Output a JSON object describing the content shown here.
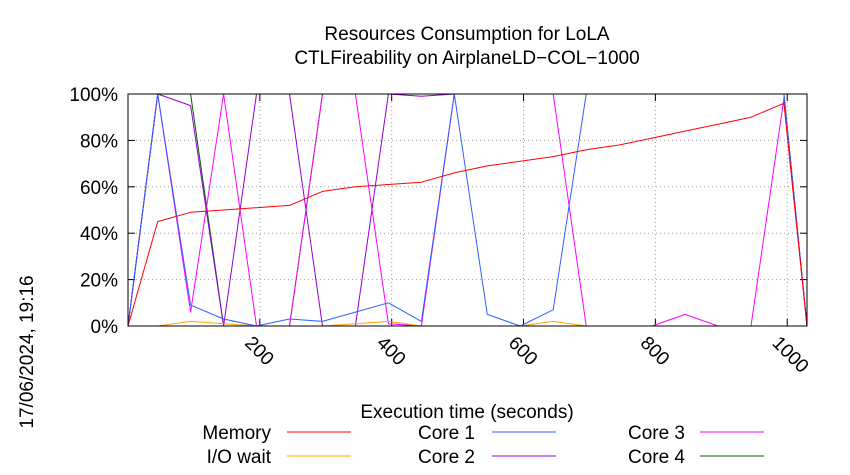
{
  "chart_data": {
    "type": "line",
    "title": "Resources Consumption for LoLA",
    "subtitle": "CTLFireability on AirplaneLD−COL−1000",
    "xlabel": "Execution time (seconds)",
    "ylabel": "",
    "timestamp": "17/06/2024, 19:16",
    "xlim": [
      0,
      1030
    ],
    "ylim": [
      0,
      100
    ],
    "x_ticks": [
      {
        "value": 200,
        "label": "200"
      },
      {
        "value": 400,
        "label": "400"
      },
      {
        "value": 600,
        "label": "600"
      },
      {
        "value": 800,
        "label": "800"
      },
      {
        "value": 1000,
        "label": "1000"
      }
    ],
    "y_ticks": [
      {
        "value": 0,
        "label": "0%"
      },
      {
        "value": 20,
        "label": "20%"
      },
      {
        "value": 40,
        "label": "40%"
      },
      {
        "value": 60,
        "label": "60%"
      },
      {
        "value": 80,
        "label": "80%"
      },
      {
        "value": 100,
        "label": "100%"
      }
    ],
    "grid": true,
    "legend_position": "bottom",
    "series": [
      {
        "name": "Memory",
        "color": "#ff0000",
        "legend_col": 0,
        "legend_row": 0,
        "points": [
          [
            0,
            0
          ],
          [
            45,
            45
          ],
          [
            95,
            49
          ],
          [
            145,
            50
          ],
          [
            195,
            51
          ],
          [
            245,
            52
          ],
          [
            295,
            58
          ],
          [
            345,
            60
          ],
          [
            395,
            61
          ],
          [
            445,
            62
          ],
          [
            495,
            66
          ],
          [
            545,
            69
          ],
          [
            595,
            71
          ],
          [
            645,
            73
          ],
          [
            695,
            76
          ],
          [
            745,
            78
          ],
          [
            795,
            81
          ],
          [
            845,
            84
          ],
          [
            895,
            87
          ],
          [
            945,
            90
          ],
          [
            995,
            96
          ],
          [
            1030,
            0
          ]
        ]
      },
      {
        "name": "I/O wait",
        "color": "#ffa500",
        "legend_col": 0,
        "legend_row": 1,
        "points": [
          [
            0,
            0
          ],
          [
            45,
            0
          ],
          [
            95,
            2
          ],
          [
            145,
            1
          ],
          [
            195,
            0
          ],
          [
            245,
            0
          ],
          [
            295,
            0
          ],
          [
            345,
            1
          ],
          [
            395,
            2
          ],
          [
            445,
            0
          ],
          [
            495,
            0
          ],
          [
            545,
            0
          ],
          [
            595,
            0
          ],
          [
            645,
            2
          ],
          [
            695,
            0
          ],
          [
            745,
            0
          ],
          [
            795,
            0
          ],
          [
            845,
            0
          ],
          [
            895,
            0
          ],
          [
            945,
            0
          ],
          [
            995,
            0
          ],
          [
            1030,
            0
          ]
        ]
      },
      {
        "name": "Core 1",
        "color": "#3060ff",
        "legend_col": 1,
        "legend_row": 0,
        "points": [
          [
            0,
            0
          ],
          [
            45,
            100
          ],
          [
            95,
            9
          ],
          [
            145,
            3
          ],
          [
            195,
            0
          ],
          [
            245,
            3
          ],
          [
            295,
            2
          ],
          [
            345,
            6
          ],
          [
            395,
            10
          ],
          [
            445,
            2
          ],
          [
            495,
            100
          ],
          [
            545,
            5
          ],
          [
            595,
            0
          ],
          [
            645,
            7
          ],
          [
            695,
            100
          ],
          [
            745,
            100
          ],
          [
            795,
            100
          ],
          [
            845,
            100
          ],
          [
            895,
            100
          ],
          [
            945,
            100
          ],
          [
            995,
            100
          ],
          [
            1030,
            0
          ]
        ]
      },
      {
        "name": "Core 2",
        "color": "#9400d3",
        "legend_col": 1,
        "legend_row": 1,
        "points": [
          [
            0,
            0
          ],
          [
            45,
            100
          ],
          [
            95,
            95
          ],
          [
            145,
            0
          ],
          [
            195,
            100
          ],
          [
            245,
            100
          ],
          [
            295,
            0
          ],
          [
            345,
            0
          ],
          [
            395,
            100
          ],
          [
            445,
            99
          ],
          [
            495,
            100
          ],
          [
            545,
            100
          ],
          [
            595,
            100
          ],
          [
            645,
            100
          ],
          [
            695,
            100
          ],
          [
            745,
            100
          ],
          [
            795,
            100
          ],
          [
            845,
            100
          ],
          [
            895,
            100
          ],
          [
            945,
            100
          ],
          [
            995,
            100
          ],
          [
            1030,
            0
          ]
        ]
      },
      {
        "name": "Core 3",
        "color": "#ff00ff",
        "legend_col": 2,
        "legend_row": 0,
        "points": [
          [
            0,
            0
          ],
          [
            45,
            100
          ],
          [
            95,
            6
          ],
          [
            145,
            100
          ],
          [
            195,
            0
          ],
          [
            245,
            0
          ],
          [
            295,
            100
          ],
          [
            345,
            100
          ],
          [
            395,
            1
          ],
          [
            445,
            0
          ],
          [
            495,
            100
          ],
          [
            545,
            100
          ],
          [
            595,
            100
          ],
          [
            645,
            100
          ],
          [
            695,
            0
          ],
          [
            745,
            0
          ],
          [
            795,
            0
          ],
          [
            845,
            5
          ],
          [
            895,
            0
          ],
          [
            945,
            0
          ],
          [
            995,
            98
          ],
          [
            1030,
            0
          ]
        ]
      },
      {
        "name": "Core 4",
        "color": "#006400",
        "legend_col": 2,
        "legend_row": 1,
        "points": [
          [
            0,
            0
          ],
          [
            45,
            100
          ],
          [
            95,
            100
          ],
          [
            145,
            0
          ],
          [
            195,
            0
          ],
          [
            245,
            0
          ],
          [
            295,
            100
          ],
          [
            345,
            100
          ],
          [
            395,
            100
          ],
          [
            445,
            100
          ],
          [
            495,
            100
          ],
          [
            545,
            100
          ],
          [
            595,
            100
          ],
          [
            645,
            100
          ],
          [
            695,
            100
          ],
          [
            745,
            100
          ],
          [
            795,
            100
          ],
          [
            845,
            100
          ],
          [
            895,
            100
          ],
          [
            945,
            100
          ],
          [
            995,
            100
          ],
          [
            1030,
            0
          ]
        ]
      }
    ]
  }
}
